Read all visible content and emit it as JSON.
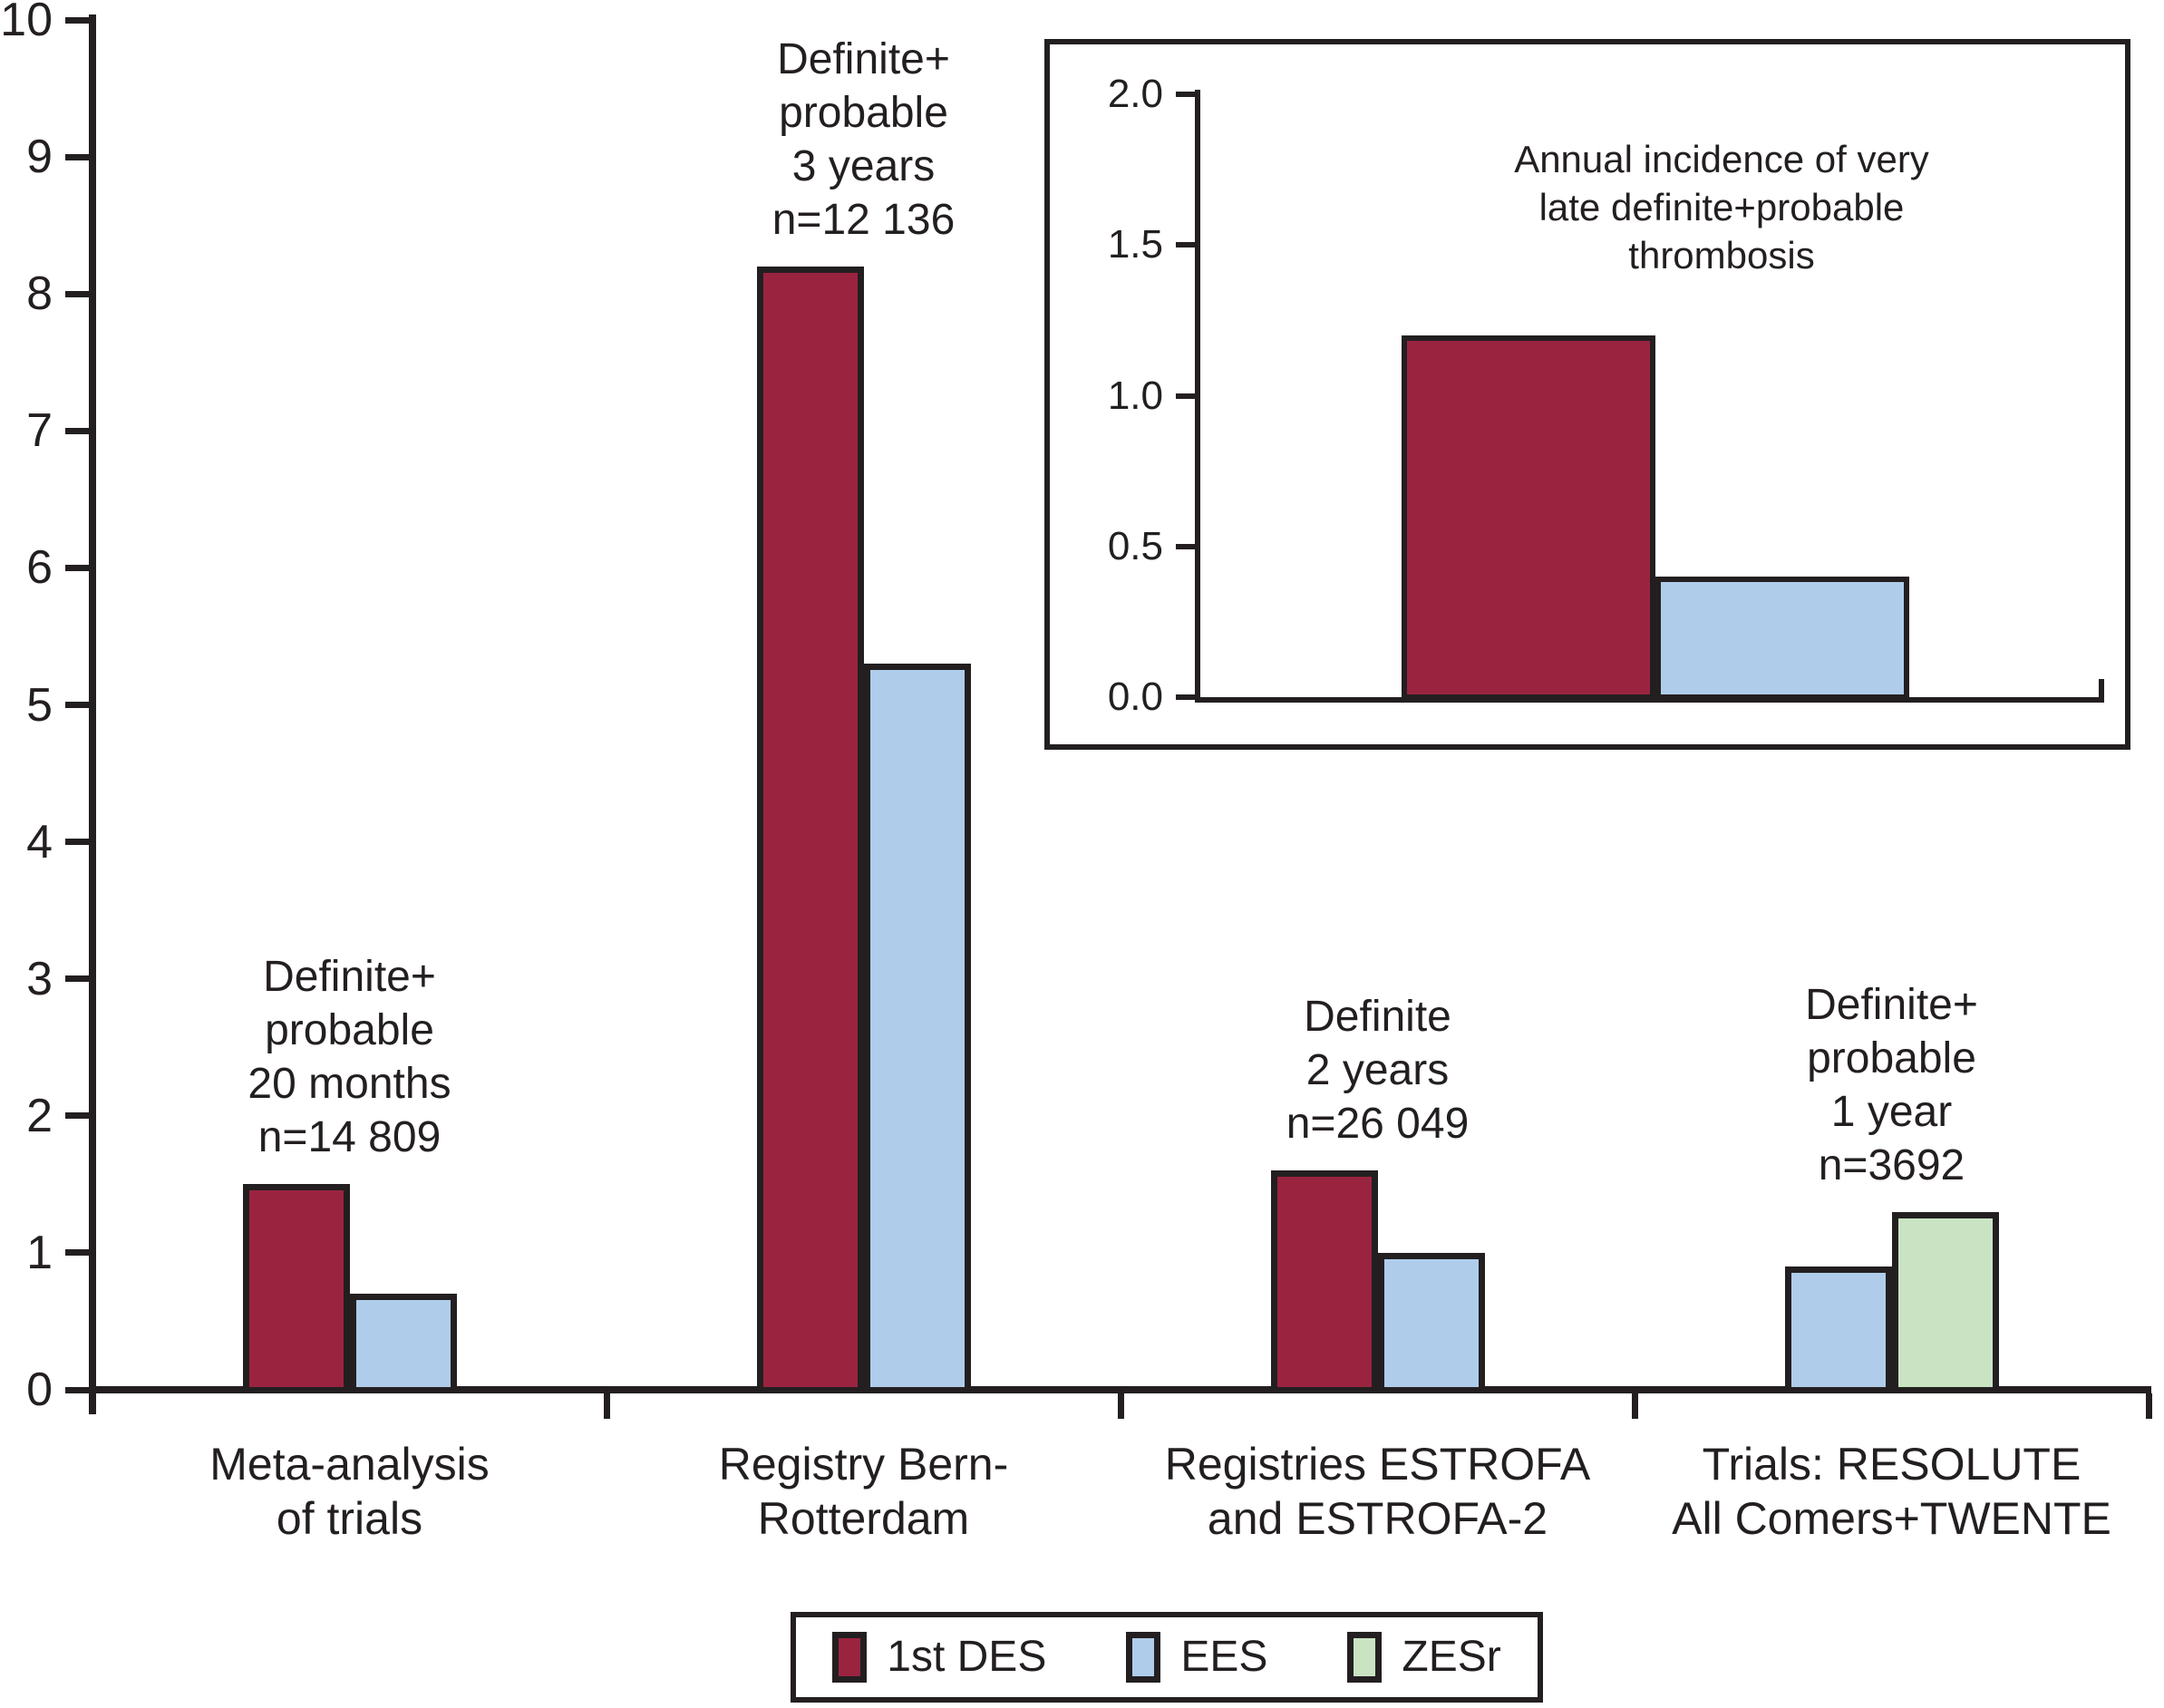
{
  "chart_data": {
    "type": "bar",
    "title": "",
    "xlabel": "",
    "ylabel": "",
    "ylim": [
      0,
      10
    ],
    "yticks": [
      0,
      1,
      2,
      3,
      4,
      5,
      6,
      7,
      8,
      9,
      10
    ],
    "grid": false,
    "legend_position": "bottom",
    "series": [
      {
        "name": "1st DES",
        "color": "#9A2440"
      },
      {
        "name": "EES",
        "color": "#AFCDEA"
      },
      {
        "name": "ZESr",
        "color": "#C9E3C3"
      }
    ],
    "groups": [
      {
        "category": [
          "Meta-analysis",
          "of trials"
        ],
        "annotation": [
          "Definite+",
          "probable",
          "20 months",
          "n=14 809"
        ],
        "bars": [
          {
            "series": "1st DES",
            "value": 1.5
          },
          {
            "series": "EES",
            "value": 0.7
          }
        ]
      },
      {
        "category": [
          "Registry Bern-",
          "Rotterdam"
        ],
        "annotation": [
          "Definite+",
          "probable",
          "3 years",
          "n=12 136"
        ],
        "bars": [
          {
            "series": "1st DES",
            "value": 8.2
          },
          {
            "series": "EES",
            "value": 5.3
          }
        ]
      },
      {
        "category": [
          "Registries ESTROFA",
          "and ESTROFA-2"
        ],
        "annotation": [
          "Definite",
          "2 years",
          "n=26 049"
        ],
        "bars": [
          {
            "series": "1st DES",
            "value": 1.6
          },
          {
            "series": "EES",
            "value": 1.0
          }
        ]
      },
      {
        "category": [
          "Trials: RESOLUTE",
          "All Comers+TWENTE"
        ],
        "annotation": [
          "Definite+",
          "probable",
          "1 year",
          "n=3692"
        ],
        "bars": [
          {
            "series": "EES",
            "value": 0.9
          },
          {
            "series": "ZESr",
            "value": 1.3
          }
        ]
      }
    ],
    "inset": {
      "type": "bar",
      "title": [
        "Annual incidence of very",
        "late definite+probable",
        "thrombosis"
      ],
      "ylim": [
        0,
        2.0
      ],
      "ytick_labels": [
        "2.0",
        "1.5",
        "1.0",
        "0.5",
        "0.0"
      ],
      "bars": [
        {
          "series": "1st DES",
          "value": 1.2
        },
        {
          "series": "EES",
          "value": 0.4
        }
      ]
    },
    "legend": [
      {
        "label": "1st DES",
        "color": "#9A2440"
      },
      {
        "label": "EES",
        "color": "#AFCDEA"
      },
      {
        "label": "ZESr",
        "color": "#C9E3C3"
      }
    ]
  }
}
